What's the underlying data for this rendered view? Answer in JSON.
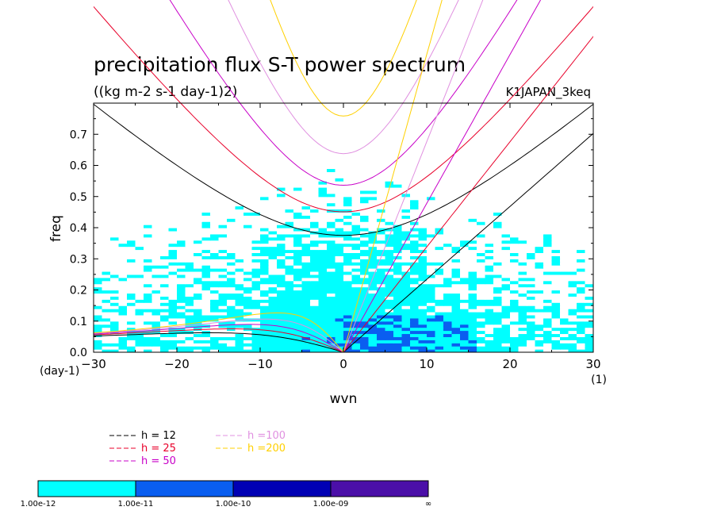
{
  "chart_data": {
    "type": "heatmap",
    "title": "precipitation flux S-T power spectrum",
    "subtitle": "((kg m-2 s-1 day-1)2)",
    "run_label": "K1JAPAN_3keq",
    "xlabel": "wvn",
    "ylabel": "freq",
    "x_unit_label": "(1)",
    "y_unit_label": "(day-1)",
    "xlim": [
      -30,
      30
    ],
    "ylim": [
      0.0,
      0.8
    ],
    "x_ticks": [
      -30,
      -20,
      -10,
      0,
      10,
      20,
      30
    ],
    "y_ticks": [
      0.0,
      0.1,
      0.2,
      0.3,
      0.4,
      0.5,
      0.6,
      0.7
    ],
    "y_tick_labels": [
      "0.0",
      "0.1",
      "0.2",
      "0.3",
      "0.4",
      "0.5",
      "0.6",
      "0.7"
    ],
    "color_levels": [
      {
        "label": "1.00e-12",
        "color": "#00ffff"
      },
      {
        "label": "1.00e-11",
        "color": "#0a5ef0"
      },
      {
        "label": "1.00e-10",
        "color": "#0000b4"
      },
      {
        "label": "1.00e-09",
        "color": "#4b0fa8"
      },
      {
        "label": "∞",
        "color": ""
      }
    ],
    "below_min_color": "#ffffff",
    "dispersion_curves": [
      {
        "label": "h = 12",
        "equivalent_depth": 12,
        "color": "#000000"
      },
      {
        "label": "h = 25",
        "equivalent_depth": 25,
        "color": "#e8002a"
      },
      {
        "label": "h = 50",
        "equivalent_depth": 50,
        "color": "#c800c8"
      },
      {
        "label": "h =100",
        "equivalent_depth": 100,
        "color": "#e090e0"
      },
      {
        "label": "h =200",
        "equivalent_depth": 200,
        "color": "#ffd000"
      }
    ]
  }
}
